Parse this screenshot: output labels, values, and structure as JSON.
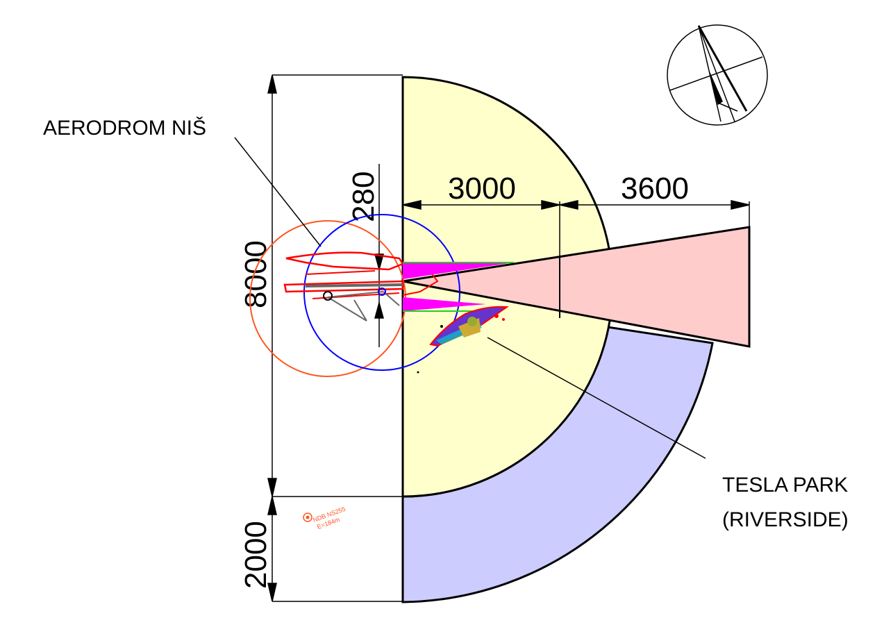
{
  "labels": {
    "aerodrome": "AERODROM NIŠ",
    "tesla_line1": "TESLA PARK",
    "tesla_line2": "(RIVERSIDE)",
    "ndb": "NDB NS255",
    "ndb_elev": "E=184m"
  },
  "dimensions": {
    "total_height": "8000",
    "lower_band": "2000",
    "inner_radius": "3000",
    "outer_extension": "3600",
    "offset": "280"
  },
  "colors": {
    "inner_zone": "#ffffcc",
    "outer_band": "#ccccff",
    "approach_wedge": "#ffcccc",
    "airport_red": "#ff0000",
    "ndb_circle": "#ff5522",
    "vor_circle": "#0000ff",
    "approach_magenta": "#ff00ff"
  },
  "icons": {
    "north_arrow": "north-arrow-icon"
  }
}
